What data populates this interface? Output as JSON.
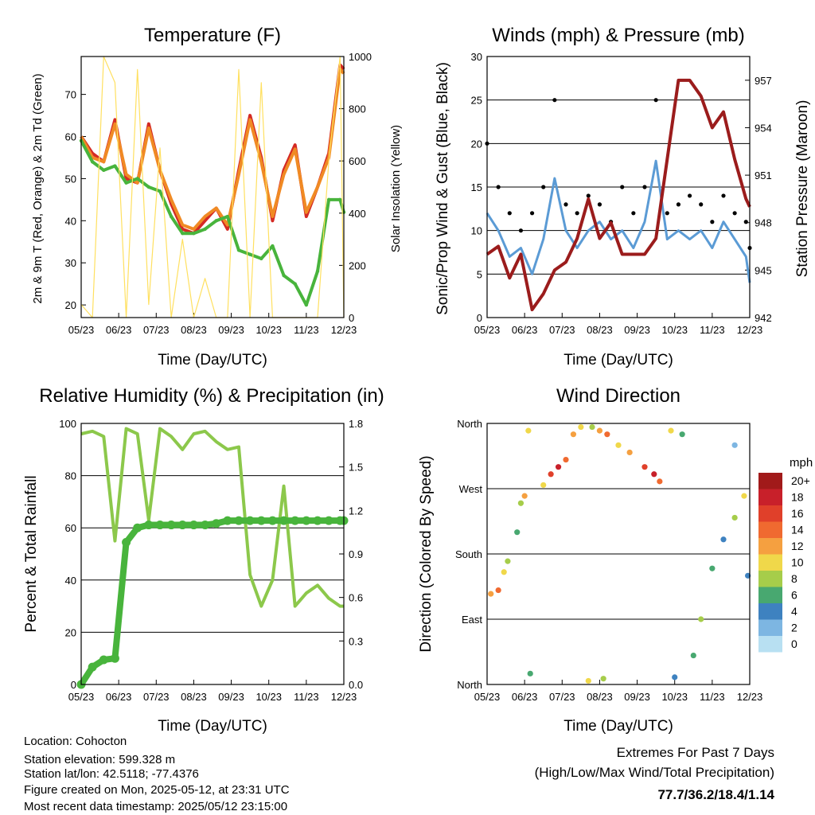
{
  "footer": {
    "location": "Location: Cohocton",
    "elevation": "Station elevation: 599.328 m",
    "latlon": "Station lat/lon: 42.5118; -77.4376",
    "created": "Figure created on Mon, 2025-05-12, at 23:31 UTC",
    "timestamp": "Most recent data timestamp: 2025/05/12 23:15:00",
    "extremes_title": "Extremes For Past 7 Days",
    "extremes_subtitle": "(High/Low/Max Wind/Total Precipitation)",
    "extremes_values": "77.7/36.2/18.4/1.14",
    "extremes_color": "#c8202a"
  },
  "x_ticks": [
    "05/23",
    "06/23",
    "07/23",
    "08/23",
    "09/23",
    "10/23",
    "11/23",
    "12/23"
  ],
  "chart_data": [
    {
      "type": "line",
      "title": "Temperature (F)",
      "xlabel": "Time (Day/UTC)",
      "ylabel": "2m & 9m T (Red, Orange) & 2m Td (Green)",
      "ylabel_right": "Solar Insolation (Yellow)",
      "ylim": [
        17,
        79
      ],
      "y_ticks": [
        20,
        30,
        40,
        50,
        60,
        70
      ],
      "ylim_right": [
        0,
        1000
      ],
      "y_ticks_right": [
        0,
        200,
        400,
        600,
        800,
        1000
      ],
      "x": [
        0,
        0.3,
        0.6,
        0.9,
        1.2,
        1.5,
        1.8,
        2.1,
        2.4,
        2.7,
        3.0,
        3.3,
        3.6,
        3.9,
        4.2,
        4.5,
        4.8,
        5.1,
        5.4,
        5.7,
        6.0,
        6.3,
        6.6,
        6.9,
        7.0
      ],
      "series": [
        {
          "color": "#d42a24",
          "values": [
            60,
            56,
            54,
            64,
            50,
            49,
            63,
            52,
            44,
            38,
            37,
            40,
            43,
            38,
            52,
            65,
            55,
            40,
            52,
            58,
            41,
            48,
            56,
            77,
            76
          ]
        },
        {
          "color": "#f08a24",
          "values": [
            60,
            55,
            54,
            63,
            51,
            49,
            62,
            52,
            45,
            39,
            38,
            41,
            43,
            39,
            51,
            64,
            54,
            41,
            51,
            57,
            42,
            48,
            55,
            76,
            75
          ]
        },
        {
          "color": "#48b43c",
          "values": [
            59,
            54,
            52,
            53,
            49,
            50,
            48,
            47,
            41,
            37,
            37,
            38,
            40,
            41,
            33,
            32,
            31,
            34,
            27,
            25,
            20,
            28,
            45,
            45,
            42
          ]
        },
        {
          "color": "#ffe060",
          "axis": "right",
          "values": [
            50,
            0,
            1000,
            900,
            0,
            950,
            50,
            650,
            0,
            300,
            0,
            150,
            0,
            0,
            950,
            0,
            900,
            0,
            0,
            0,
            0,
            0,
            600,
            1000,
            0
          ]
        }
      ]
    },
    {
      "type": "line",
      "title": "Winds (mph) & Pressure (mb)",
      "xlabel": "Time (Day/UTC)",
      "ylabel": "Sonic/Prop Wind & Gust (Blue, Black)",
      "ylabel_right": "Station Pressure (Maroon)",
      "ylim": [
        0,
        30
      ],
      "y_ticks": [
        0,
        5,
        10,
        15,
        20,
        25,
        30
      ],
      "ylim_right": [
        942,
        958.5
      ],
      "y_ticks_right": [
        942,
        945,
        948,
        951,
        954,
        957
      ],
      "x": [
        0,
        0.3,
        0.6,
        0.9,
        1.2,
        1.5,
        1.8,
        2.1,
        2.4,
        2.7,
        3.0,
        3.3,
        3.6,
        3.9,
        4.2,
        4.5,
        4.8,
        5.1,
        5.4,
        5.7,
        6.0,
        6.3,
        6.6,
        6.9,
        7.0
      ],
      "series": [
        {
          "color": "#5b9bd5",
          "values": [
            12,
            10,
            7,
            8,
            5,
            9,
            16,
            10,
            8,
            10,
            11,
            9,
            10,
            8,
            11,
            18,
            9,
            10,
            9,
            10,
            8,
            11,
            9,
            7,
            4
          ]
        },
        {
          "color": "#000000",
          "values": [
            20,
            15,
            12,
            10,
            12,
            15,
            25,
            13,
            12,
            14,
            13,
            11,
            15,
            12,
            15,
            25,
            12,
            13,
            14,
            13,
            11,
            14,
            12,
            11,
            8
          ]
        },
        {
          "color": "#9b1c1c",
          "axis": "right",
          "values": [
            946,
            946.5,
            944.5,
            946,
            942.5,
            943.5,
            945,
            945.5,
            947,
            949.5,
            947,
            948,
            946,
            946,
            946,
            947,
            952,
            957,
            957,
            956,
            954,
            955,
            952,
            949.5,
            949
          ]
        }
      ]
    },
    {
      "type": "line",
      "title": "Relative Humidity (%) & Precipitation (in)",
      "xlabel": "Time (Day/UTC)",
      "ylabel": "Percent & Total Rainfall",
      "ylim": [
        0,
        100
      ],
      "y_ticks": [
        0,
        20,
        40,
        60,
        80,
        100
      ],
      "ylim_right": [
        0,
        1.8
      ],
      "y_ticks_right": [
        "0.0",
        "0.3",
        "0.6",
        "0.9",
        "1.2",
        "1.5",
        "1.8"
      ],
      "x": [
        0,
        0.3,
        0.6,
        0.9,
        1.2,
        1.5,
        1.8,
        2.1,
        2.4,
        2.7,
        3.0,
        3.3,
        3.6,
        3.9,
        4.2,
        4.5,
        4.8,
        5.1,
        5.4,
        5.7,
        6.0,
        6.3,
        6.6,
        6.9,
        7.0
      ],
      "series": [
        {
          "color": "#8cc84b",
          "values": [
            96,
            97,
            95,
            55,
            98,
            96,
            63,
            98,
            95,
            90,
            96,
            97,
            93,
            90,
            91,
            42,
            30,
            40,
            76,
            30,
            35,
            38,
            33,
            30,
            30
          ]
        },
        {
          "color": "#48b43c",
          "axis": "right",
          "values": [
            0,
            0.12,
            0.17,
            0.18,
            0.98,
            1.08,
            1.1,
            1.1,
            1.1,
            1.1,
            1.1,
            1.1,
            1.11,
            1.13,
            1.13,
            1.13,
            1.13,
            1.13,
            1.13,
            1.13,
            1.13,
            1.13,
            1.13,
            1.13,
            1.13
          ]
        }
      ]
    },
    {
      "type": "scatter",
      "title": "Wind Direction",
      "xlabel": "Time (Day/UTC)",
      "ylabel": "Direction (Colored By Speed)",
      "ylim": [
        0,
        360
      ],
      "y_ticks": [
        "North",
        "East",
        "South",
        "West",
        "North"
      ],
      "legend_title": "mph",
      "legend_labels": [
        "20+",
        "18",
        "16",
        "14",
        "12",
        "10",
        "8",
        "6",
        "4",
        "2",
        "0"
      ],
      "legend_colors": [
        "#a11a1a",
        "#c8202a",
        "#e0402a",
        "#f06a30",
        "#f5a040",
        "#f0d84a",
        "#a6cd4a",
        "#48a870",
        "#3e82c0",
        "#7db6e2",
        "#b8e0f2"
      ],
      "points": [
        {
          "x": 0.1,
          "y": 125,
          "speed": 12
        },
        {
          "x": 0.3,
          "y": 130,
          "speed": 14
        },
        {
          "x": 0.45,
          "y": 155,
          "speed": 10
        },
        {
          "x": 0.55,
          "y": 170,
          "speed": 8
        },
        {
          "x": 0.8,
          "y": 210,
          "speed": 6
        },
        {
          "x": 0.9,
          "y": 250,
          "speed": 8
        },
        {
          "x": 1.0,
          "y": 260,
          "speed": 12
        },
        {
          "x": 1.1,
          "y": 350,
          "speed": 10
        },
        {
          "x": 1.15,
          "y": 15,
          "speed": 6
        },
        {
          "x": 1.5,
          "y": 275,
          "speed": 10
        },
        {
          "x": 1.7,
          "y": 290,
          "speed": 16
        },
        {
          "x": 1.9,
          "y": 300,
          "speed": 18
        },
        {
          "x": 2.1,
          "y": 310,
          "speed": 14
        },
        {
          "x": 2.3,
          "y": 345,
          "speed": 12
        },
        {
          "x": 2.5,
          "y": 355,
          "speed": 10
        },
        {
          "x": 2.8,
          "y": 355,
          "speed": 8
        },
        {
          "x": 3.0,
          "y": 350,
          "speed": 12
        },
        {
          "x": 3.2,
          "y": 345,
          "speed": 14
        },
        {
          "x": 2.7,
          "y": 5,
          "speed": 10
        },
        {
          "x": 3.1,
          "y": 8,
          "speed": 8
        },
        {
          "x": 3.5,
          "y": 330,
          "speed": 10
        },
        {
          "x": 3.8,
          "y": 320,
          "speed": 12
        },
        {
          "x": 4.2,
          "y": 300,
          "speed": 16
        },
        {
          "x": 4.45,
          "y": 290,
          "speed": 18
        },
        {
          "x": 4.6,
          "y": 280,
          "speed": 14
        },
        {
          "x": 4.9,
          "y": 350,
          "speed": 10
        },
        {
          "x": 5.2,
          "y": 345,
          "speed": 6
        },
        {
          "x": 5.0,
          "y": 10,
          "speed": 4
        },
        {
          "x": 5.5,
          "y": 40,
          "speed": 6
        },
        {
          "x": 5.7,
          "y": 90,
          "speed": 8
        },
        {
          "x": 6.0,
          "y": 160,
          "speed": 6
        },
        {
          "x": 6.3,
          "y": 200,
          "speed": 4
        },
        {
          "x": 6.6,
          "y": 230,
          "speed": 8
        },
        {
          "x": 6.85,
          "y": 260,
          "speed": 10
        },
        {
          "x": 6.95,
          "y": 150,
          "speed": 4
        },
        {
          "x": 6.6,
          "y": 330,
          "speed": 2
        }
      ]
    }
  ]
}
